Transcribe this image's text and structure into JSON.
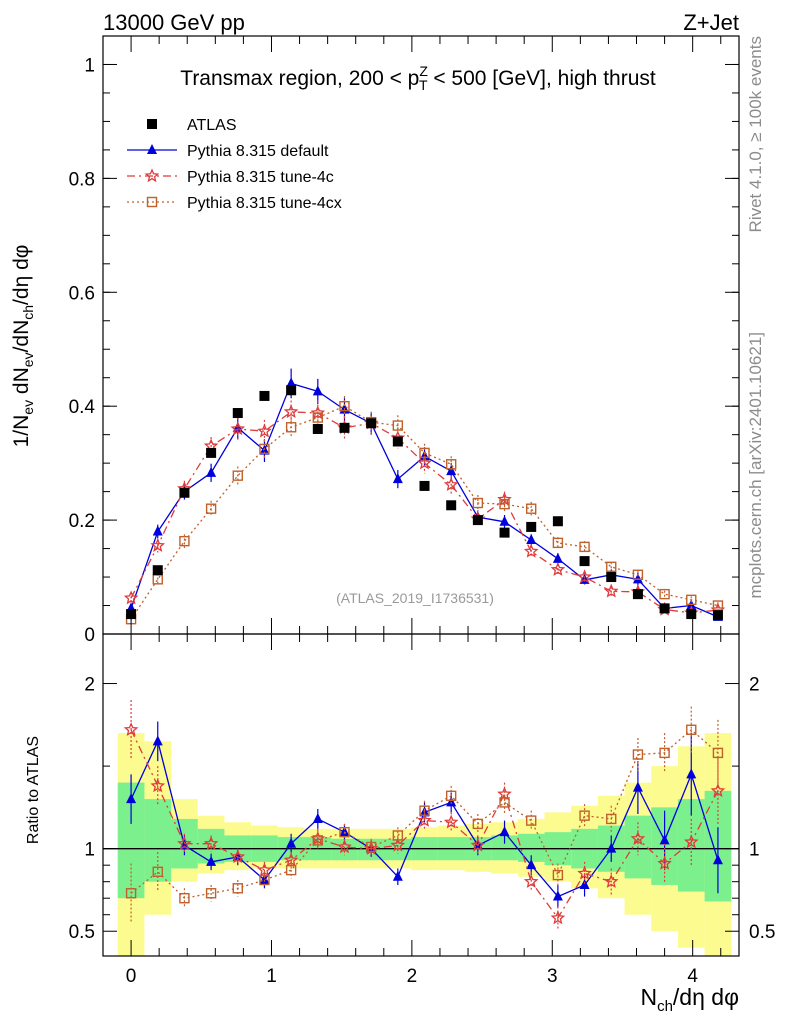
{
  "header": {
    "energy": "13000 GeV pp",
    "process": "Z+Jet",
    "side_rivet": "Rivet 4.1.0, ≥ 100k events",
    "side_mcplots": "mcplots.cern.ch [arXiv:2401.10621]"
  },
  "colors": {
    "data": "#000000",
    "default": "#0000dd",
    "tune4c": "#e03b3b",
    "tune4cx": "#c0602a",
    "band_inner": "#7df08e",
    "band_outer": "#fbfb90"
  },
  "chart_data": [
    {
      "type": "scatter",
      "title": "Transmax region, 200 < p_T^Z < 500 [GeV], high thrust",
      "title_parts": {
        "before": "Transmax region, 200 < p",
        "sup": "Z",
        "sub": "T",
        "after": " < 500 [GeV], high thrust"
      },
      "ylabel": "1/N_ev dN_ev/dN_ch/dη dφ",
      "ylabel_parts": [
        "1/N",
        "ev",
        " dN",
        "ev",
        "/dN",
        "ch",
        "/dη dφ"
      ],
      "xlim": [
        -0.2,
        4.33
      ],
      "ylim": [
        0,
        1.05
      ],
      "yticks": [
        0,
        0.2,
        0.4,
        0.6,
        0.8,
        1
      ],
      "ytick_labels": [
        "0",
        "0.2",
        "0.4",
        "0.6",
        "0.8",
        "1"
      ],
      "watermark": "(ATLAS_2019_I1736531)",
      "legend": [
        "ATLAS",
        "Pythia 8.315 default",
        "Pythia 8.315 tune-4c",
        "Pythia 8.315 tune-4cx"
      ],
      "legend_position": "top-left",
      "x": [
        0.0,
        0.19,
        0.38,
        0.57,
        0.76,
        0.95,
        1.14,
        1.33,
        1.52,
        1.71,
        1.9,
        2.09,
        2.28,
        2.47,
        2.66,
        2.85,
        3.04,
        3.23,
        3.42,
        3.61,
        3.8,
        3.99,
        4.18
      ],
      "series": [
        {
          "name": "ATLAS",
          "marker": "square",
          "values": [
            0.035,
            0.112,
            0.248,
            0.318,
            0.388,
            0.418,
            0.428,
            0.36,
            0.362,
            0.37,
            0.338,
            0.26,
            0.226,
            0.2,
            0.178,
            0.188,
            0.198,
            0.128,
            0.1,
            0.07,
            0.045,
            0.035,
            0.033
          ]
        },
        {
          "name": "Pythia 8.315 default",
          "marker": "triangle",
          "line": "solid",
          "values": [
            0.045,
            0.18,
            0.25,
            0.283,
            0.362,
            0.322,
            0.44,
            0.426,
            0.394,
            0.37,
            0.272,
            0.312,
            0.286,
            0.205,
            0.197,
            0.165,
            0.132,
            0.095,
            0.104,
            0.096,
            0.045,
            0.05,
            0.03
          ],
          "errors": [
            0.006,
            0.012,
            0.014,
            0.016,
            0.02,
            0.02,
            0.026,
            0.022,
            0.02,
            0.02,
            0.016,
            0.016,
            0.014,
            0.012,
            0.012,
            0.01,
            0.01,
            0.008,
            0.008,
            0.012,
            0.008,
            0.01,
            0.006
          ]
        },
        {
          "name": "Pythia 8.315 tune-4c",
          "marker": "star",
          "line": "dashdot",
          "values": [
            0.063,
            0.155,
            0.255,
            0.33,
            0.36,
            0.356,
            0.39,
            0.388,
            0.362,
            0.37,
            0.344,
            0.3,
            0.262,
            0.202,
            0.236,
            0.145,
            0.113,
            0.1,
            0.075,
            0.074,
            0.043,
            0.037,
            0.042
          ],
          "errors": [
            0.01,
            0.012,
            0.014,
            0.016,
            0.02,
            0.02,
            0.02,
            0.022,
            0.02,
            0.02,
            0.018,
            0.018,
            0.016,
            0.014,
            0.014,
            0.01,
            0.01,
            0.008,
            0.008,
            0.008,
            0.006,
            0.006,
            0.006
          ]
        },
        {
          "name": "Pythia 8.315 tune-4cx",
          "marker": "open-square",
          "line": "dotted",
          "values": [
            0.026,
            0.096,
            0.163,
            0.22,
            0.278,
            0.325,
            0.363,
            0.38,
            0.4,
            0.372,
            0.366,
            0.318,
            0.298,
            0.23,
            0.228,
            0.22,
            0.16,
            0.153,
            0.118,
            0.104,
            0.07,
            0.06,
            0.05
          ],
          "errors": [
            0.008,
            0.01,
            0.012,
            0.014,
            0.016,
            0.016,
            0.016,
            0.018,
            0.018,
            0.018,
            0.018,
            0.016,
            0.014,
            0.014,
            0.012,
            0.012,
            0.01,
            0.01,
            0.008,
            0.008,
            0.006,
            0.006,
            0.006
          ]
        }
      ]
    },
    {
      "type": "line",
      "title": "",
      "ylabel": "Ratio to ATLAS",
      "xlabel": "N_ch/dη dφ",
      "xlabel_parts": [
        "N",
        "ch",
        "/dη dφ"
      ],
      "xlim": [
        -0.2,
        4.33
      ],
      "ylim": [
        0.35,
        2.3
      ],
      "yticks": [
        0.5,
        1,
        2
      ],
      "ytick_labels": [
        "0.5",
        "1",
        "2"
      ],
      "xticks": [
        0,
        1,
        2,
        3,
        4
      ],
      "xtick_labels": [
        "0",
        "1",
        "2",
        "3",
        "4"
      ],
      "reference_line": 1,
      "band_inner": [
        [
          0.7,
          1.4
        ],
        [
          0.8,
          1.3
        ],
        [
          0.88,
          1.18
        ],
        [
          0.91,
          1.12
        ],
        [
          0.92,
          1.08
        ],
        [
          0.92,
          1.08
        ],
        [
          0.93,
          1.07
        ],
        [
          0.93,
          1.07
        ],
        [
          0.93,
          1.06
        ],
        [
          0.93,
          1.06
        ],
        [
          0.93,
          1.06
        ],
        [
          0.93,
          1.07
        ],
        [
          0.93,
          1.07
        ],
        [
          0.93,
          1.07
        ],
        [
          0.93,
          1.08
        ],
        [
          0.92,
          1.09
        ],
        [
          0.9,
          1.1
        ],
        [
          0.88,
          1.12
        ],
        [
          0.86,
          1.14
        ],
        [
          0.82,
          1.2
        ],
        [
          0.78,
          1.25
        ],
        [
          0.74,
          1.3
        ],
        [
          0.68,
          1.35
        ]
      ],
      "band_outer": [
        [
          0.35,
          1.7
        ],
        [
          0.6,
          1.65
        ],
        [
          0.8,
          1.3
        ],
        [
          0.85,
          1.2
        ],
        [
          0.87,
          1.16
        ],
        [
          0.88,
          1.14
        ],
        [
          0.88,
          1.13
        ],
        [
          0.88,
          1.12
        ],
        [
          0.88,
          1.12
        ],
        [
          0.88,
          1.12
        ],
        [
          0.88,
          1.12
        ],
        [
          0.87,
          1.13
        ],
        [
          0.87,
          1.14
        ],
        [
          0.86,
          1.15
        ],
        [
          0.85,
          1.16
        ],
        [
          0.83,
          1.18
        ],
        [
          0.8,
          1.22
        ],
        [
          0.76,
          1.26
        ],
        [
          0.7,
          1.32
        ],
        [
          0.6,
          1.4
        ],
        [
          0.5,
          1.5
        ],
        [
          0.4,
          1.62
        ],
        [
          0.35,
          1.7
        ]
      ],
      "series": [
        {
          "name": "Pythia 8.315 default",
          "marker": "triangle",
          "line": "solid",
          "values": [
            1.3,
            1.65,
            1.02,
            0.92,
            0.95,
            0.81,
            1.03,
            1.18,
            1.1,
            1.0,
            0.83,
            1.22,
            1.28,
            1.02,
            1.1,
            0.9,
            0.71,
            0.78,
            1.0,
            1.37,
            1.05,
            1.45,
            0.93
          ],
          "errors": [
            0.15,
            0.12,
            0.06,
            0.05,
            0.05,
            0.05,
            0.06,
            0.06,
            0.05,
            0.05,
            0.05,
            0.06,
            0.06,
            0.06,
            0.07,
            0.06,
            0.07,
            0.07,
            0.08,
            0.16,
            0.18,
            0.25,
            0.2
          ]
        },
        {
          "name": "Pythia 8.315 tune-4c",
          "marker": "star",
          "line": "dashdot",
          "values": [
            1.72,
            1.38,
            1.03,
            1.03,
            0.95,
            0.87,
            0.93,
            1.06,
            1.01,
            1.0,
            1.02,
            1.17,
            1.16,
            1.02,
            1.33,
            0.8,
            0.58,
            0.85,
            0.8,
            1.06,
            0.91,
            1.04,
            1.35
          ],
          "errors": [
            0.18,
            0.12,
            0.06,
            0.05,
            0.05,
            0.05,
            0.05,
            0.06,
            0.05,
            0.05,
            0.05,
            0.06,
            0.06,
            0.06,
            0.07,
            0.06,
            0.07,
            0.07,
            0.08,
            0.1,
            0.12,
            0.14,
            0.2
          ]
        },
        {
          "name": "Pythia 8.315 tune-4cx",
          "marker": "open-square",
          "line": "dotted",
          "values": [
            0.73,
            0.86,
            0.7,
            0.73,
            0.76,
            0.81,
            0.87,
            1.05,
            1.1,
            1.01,
            1.08,
            1.23,
            1.32,
            1.15,
            1.28,
            1.17,
            0.84,
            1.2,
            1.18,
            1.57,
            1.58,
            1.72,
            1.58
          ],
          "errors": [
            0.18,
            0.12,
            0.06,
            0.05,
            0.05,
            0.05,
            0.05,
            0.06,
            0.05,
            0.05,
            0.05,
            0.06,
            0.06,
            0.06,
            0.07,
            0.06,
            0.07,
            0.07,
            0.08,
            0.1,
            0.12,
            0.14,
            0.2
          ]
        }
      ]
    }
  ]
}
